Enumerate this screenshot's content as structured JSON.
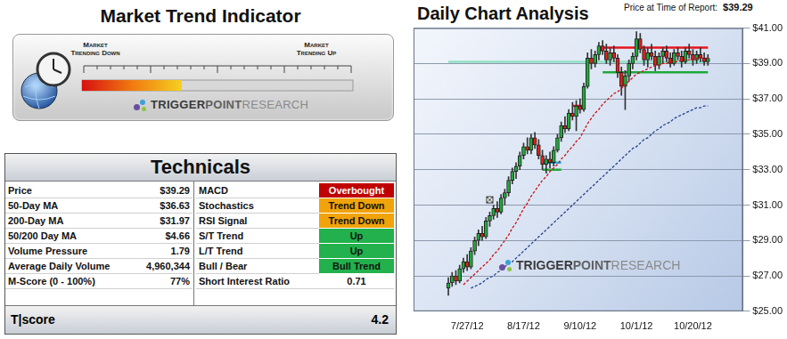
{
  "trend_indicator": {
    "title": "Market Trend Indicator",
    "down_label": [
      "Market",
      "Trending Down"
    ],
    "up_label": [
      "Market",
      "Trending Up"
    ]
  },
  "logo": [
    "TRIGGER",
    "POINT",
    "RESEARCH"
  ],
  "technicals": {
    "title": "Technicals",
    "left": [
      [
        "Price",
        "$39.29"
      ],
      [
        "50-Day MA",
        "$36.63"
      ],
      [
        "200-Day MA",
        "$31.97"
      ],
      [
        "50/200 Day MA",
        "$4.66"
      ],
      [
        "Volume Pressure",
        "1.79"
      ],
      [
        "Average Daily Volume",
        "4,960,344"
      ],
      [
        "M-Score (0 - 100%)",
        "77%"
      ]
    ],
    "right": [
      {
        "label": "MACD",
        "value": "Overbought",
        "color": "#c00000"
      },
      {
        "label": "Stochastics",
        "value": "Trend Down",
        "color": "#f0a30a"
      },
      {
        "label": "RSI Signal",
        "value": "Trend Down",
        "color": "#f0a30a"
      },
      {
        "label": "S/T Trend",
        "value": "Up",
        "color": "#22b14c"
      },
      {
        "label": "L/T Trend",
        "value": "Up",
        "color": "#22b14c"
      },
      {
        "label": "Bull / Bear",
        "value": "Bull Trend",
        "color": "#22b14c"
      },
      {
        "label": "Short Interest Ratio",
        "value": "0.71"
      }
    ],
    "footer": [
      "T|score",
      "4.2"
    ]
  },
  "chart_data": {
    "type": "candlestick",
    "title": "Daily Chart Analysis",
    "annotations": [
      {
        "label": "Price at Time of Report:",
        "value": "$39.29"
      }
    ],
    "categories": [
      null,
      null,
      null,
      null,
      null,
      "7/27/12",
      null,
      null,
      null,
      null,
      null,
      null,
      null,
      null,
      null,
      null,
      null,
      null,
      null,
      null,
      "8/17/12",
      null,
      null,
      null,
      null,
      null,
      null,
      null,
      null,
      null,
      null,
      null,
      null,
      null,
      null,
      "9/10/12",
      null,
      null,
      null,
      null,
      null,
      null,
      null,
      null,
      null,
      null,
      null,
      null,
      null,
      null,
      "10/1/12",
      null,
      null,
      null,
      null,
      null,
      null,
      null,
      null,
      null,
      null,
      null,
      null,
      null,
      null,
      "10/20/12",
      null,
      null,
      null,
      null
    ],
    "ylim": [
      25,
      41
    ],
    "yticks": [
      {
        "value": 25,
        "label": "$25.00"
      },
      {
        "value": 27,
        "label": "$27.00"
      },
      {
        "value": 29,
        "label": "$29.00"
      },
      {
        "value": 31,
        "label": "$31.00"
      },
      {
        "value": 33,
        "label": "$33.00"
      },
      {
        "value": 35,
        "label": "$35.00"
      },
      {
        "value": 37,
        "label": "$37.00"
      },
      {
        "value": 39,
        "label": "$39.00"
      },
      {
        "value": 41,
        "label": "$41.00"
      }
    ],
    "grid": true,
    "series": [
      {
        "type": "line",
        "color": "#8fe0c4",
        "line_style": "solid",
        "x": [
          0,
          69
        ],
        "values": [
          39.1,
          39.1
        ]
      },
      {
        "type": "candlestick",
        "color": {
          "up": "#22a83a",
          "down": "#e0201c"
        },
        "open": [
          26.3,
          26.6,
          27.0,
          26.7,
          27.4,
          27.8,
          27.5,
          28.4,
          29.0,
          29.4,
          29.2,
          30.1,
          30.4,
          30.8,
          30.6,
          31.4,
          31.7,
          32.4,
          32.9,
          33.2,
          33.8,
          34.3,
          34.1,
          34.8,
          34.4,
          33.8,
          33.3,
          33.6,
          33.4,
          34.1,
          34.8,
          35.5,
          35.3,
          36.2,
          36.0,
          36.6,
          36.4,
          37.7,
          39.3,
          39.0,
          39.5,
          40.0,
          39.7,
          39.2,
          39.6,
          39.3,
          38.5,
          37.7,
          38.3,
          39.0,
          39.4,
          40.4,
          39.8,
          39.2,
          39.6,
          39.4,
          38.9,
          39.4,
          39.7,
          39.3,
          39.0,
          39.6,
          39.4,
          39.1,
          39.7,
          39.5,
          39.2,
          39.5,
          39.3,
          39.1
        ],
        "high": [
          26.9,
          27.2,
          27.3,
          27.6,
          28.0,
          28.2,
          28.6,
          29.2,
          29.6,
          29.8,
          30.3,
          30.6,
          31.0,
          31.2,
          31.6,
          31.9,
          32.6,
          33.1,
          33.4,
          34.0,
          34.5,
          34.8,
          35.0,
          35.1,
          34.7,
          34.1,
          33.8,
          34.0,
          34.3,
          35.0,
          35.7,
          36.0,
          36.4,
          36.8,
          36.9,
          37.0,
          37.9,
          39.6,
          39.8,
          39.7,
          40.2,
          40.3,
          40.1,
          39.9,
          40.0,
          39.5,
          38.8,
          38.6,
          39.2,
          39.6,
          40.8,
          40.7,
          40.0,
          39.9,
          40.1,
          39.7,
          39.6,
          39.9,
          40.0,
          39.6,
          39.8,
          39.9,
          39.7,
          39.9,
          40.1,
          39.8,
          39.7,
          39.9,
          39.6,
          39.5
        ],
        "low": [
          25.9,
          26.4,
          26.5,
          26.6,
          27.2,
          27.3,
          27.4,
          28.2,
          28.7,
          29.0,
          29.1,
          29.8,
          30.2,
          30.3,
          30.5,
          31.0,
          31.5,
          32.2,
          32.5,
          33.0,
          33.6,
          33.9,
          33.9,
          34.2,
          33.6,
          33.0,
          32.8,
          33.1,
          33.2,
          34.0,
          34.6,
          35.1,
          35.2,
          35.8,
          35.2,
          36.2,
          36.3,
          37.6,
          38.7,
          38.8,
          39.2,
          39.5,
          39.0,
          38.9,
          39.1,
          38.2,
          37.2,
          36.4,
          38.0,
          38.7,
          39.2,
          39.6,
          38.9,
          38.8,
          39.2,
          38.6,
          38.7,
          39.0,
          39.1,
          38.8,
          38.9,
          39.2,
          38.8,
          39.0,
          39.3,
          38.9,
          39.0,
          39.1,
          38.9,
          38.9
        ],
        "close": [
          26.6,
          27.0,
          26.7,
          27.4,
          27.8,
          27.5,
          28.4,
          29.0,
          29.4,
          29.2,
          30.1,
          30.4,
          30.8,
          30.6,
          31.4,
          31.7,
          32.4,
          32.9,
          33.2,
          33.8,
          34.3,
          34.1,
          34.8,
          34.4,
          33.8,
          33.3,
          33.6,
          33.4,
          34.1,
          34.8,
          35.5,
          35.3,
          36.2,
          36.0,
          36.6,
          36.4,
          37.7,
          39.3,
          39.0,
          39.5,
          40.0,
          39.7,
          39.2,
          39.6,
          39.3,
          38.5,
          37.7,
          38.3,
          39.0,
          39.4,
          40.4,
          39.8,
          39.2,
          39.6,
          39.4,
          38.9,
          39.4,
          39.7,
          39.3,
          39.0,
          39.6,
          39.4,
          39.1,
          39.7,
          39.5,
          39.2,
          39.5,
          39.3,
          39.1,
          39.29
        ]
      },
      {
        "type": "line",
        "color": "#cc1010",
        "line_style": "dashed",
        "values": [
          null,
          null,
          null,
          null,
          26.5,
          26.7,
          26.9,
          27.1,
          27.3,
          27.5,
          27.7,
          27.9,
          28.2,
          28.4,
          28.7,
          29.0,
          29.3,
          29.7,
          30.0,
          30.4,
          30.8,
          31.1,
          31.5,
          31.8,
          32.1,
          32.4,
          32.6,
          32.9,
          33.1,
          33.3,
          33.6,
          33.8,
          34.1,
          34.3,
          34.6,
          34.8,
          35.2,
          35.6,
          35.9,
          36.2,
          36.4,
          36.7,
          36.9,
          37.1,
          37.3,
          37.4,
          37.6,
          37.8,
          38.0,
          38.2,
          38.4,
          38.5,
          38.6,
          38.7,
          38.8,
          38.9,
          38.9,
          39.0,
          39.0,
          39.1,
          39.1,
          39.1,
          39.2,
          39.2,
          39.2,
          39.2,
          39.3,
          39.3,
          39.3,
          39.3
        ]
      },
      {
        "type": "line",
        "color": "#24418f",
        "line_style": "dashed",
        "values": [
          null,
          null,
          null,
          null,
          null,
          null,
          26.3,
          26.4,
          26.5,
          26.6,
          26.8,
          26.9,
          27.0,
          27.2,
          27.3,
          27.5,
          27.7,
          27.8,
          28.0,
          28.2,
          28.4,
          28.6,
          28.8,
          29.0,
          29.2,
          29.4,
          29.6,
          29.8,
          30.0,
          30.2,
          30.4,
          30.6,
          30.8,
          31.0,
          31.2,
          31.4,
          31.6,
          31.8,
          32.0,
          32.2,
          32.4,
          32.6,
          32.8,
          33.0,
          33.2,
          33.4,
          33.6,
          33.8,
          34.0,
          34.2,
          34.3,
          34.5,
          34.7,
          34.8,
          35.0,
          35.2,
          35.3,
          35.5,
          35.6,
          35.7,
          35.9,
          36.0,
          36.1,
          36.2,
          36.3,
          36.4,
          36.5,
          36.5,
          36.6,
          36.6
        ]
      },
      {
        "type": "line",
        "color": "#e8141b",
        "line_style": "solid",
        "x": [
          41,
          69
        ],
        "values": [
          39.9,
          39.9
        ]
      },
      {
        "type": "line",
        "color": "#1fa83a",
        "line_style": "solid",
        "x": [
          41,
          69
        ],
        "values": [
          38.5,
          38.5
        ]
      },
      {
        "type": "line",
        "color": "#e8141b",
        "line_style": "solid",
        "x": [
          33,
          36
        ],
        "values": [
          36.6,
          36.6
        ]
      },
      {
        "type": "line",
        "color": "#19b6e8",
        "line_style": "solid",
        "x": [
          25,
          30
        ],
        "values": [
          33.4,
          33.4
        ]
      },
      {
        "type": "line",
        "color": "#1fa83a",
        "line_style": "solid",
        "x": [
          25,
          30
        ],
        "values": [
          33.0,
          33.0
        ]
      },
      {
        "type": "scatter",
        "marker": "boxed_x",
        "color": "#333333",
        "x": [
          11
        ],
        "values": [
          31.3
        ]
      }
    ]
  }
}
